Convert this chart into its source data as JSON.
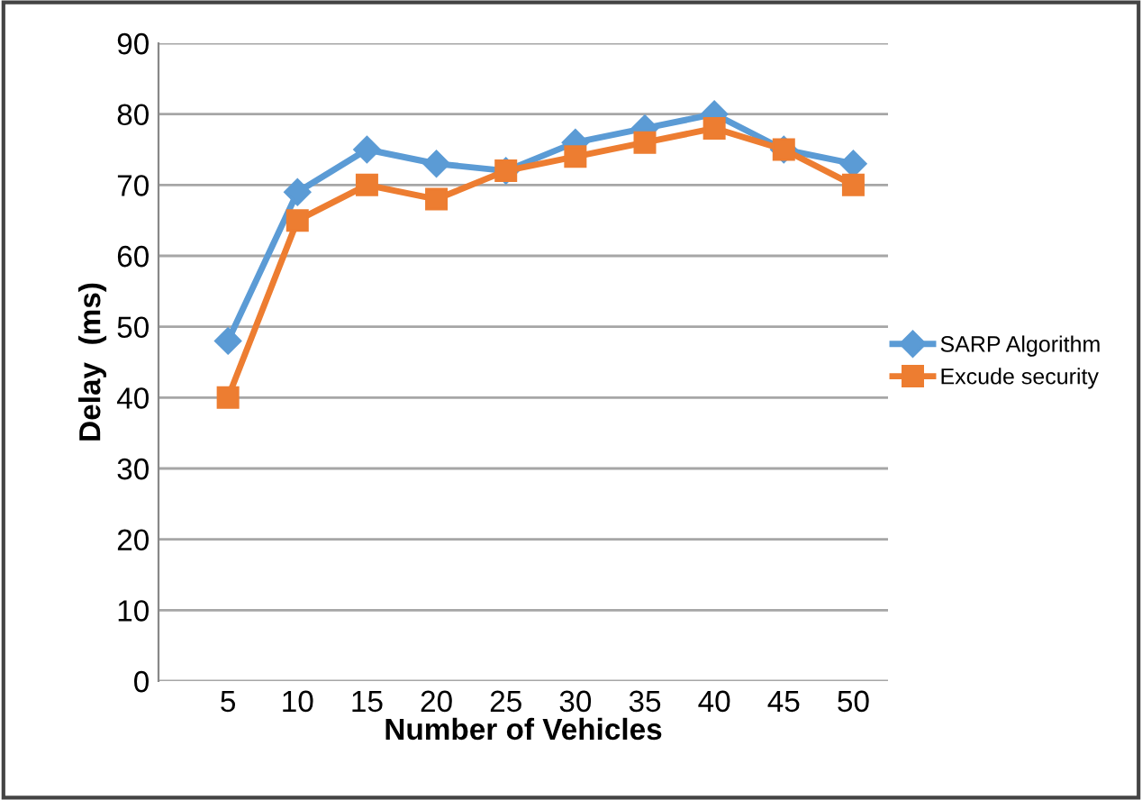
{
  "chart_data": {
    "type": "line",
    "xlabel": "Number of Vehicles",
    "ylabel": "Delay  (ms)",
    "categories": [
      "5",
      "10",
      "15",
      "20",
      "25",
      "30",
      "35",
      "40",
      "45",
      "50"
    ],
    "series": [
      {
        "name": "SARP Algorithm",
        "color": "#5b9bd5",
        "marker": "diamond",
        "values": [
          48,
          69,
          75,
          73,
          72,
          76,
          78,
          80,
          75,
          73
        ]
      },
      {
        "name": "Excude security",
        "color": "#ed7d31",
        "marker": "square",
        "values": [
          40,
          65,
          70,
          68,
          72,
          74,
          76,
          78,
          75,
          70
        ]
      }
    ],
    "ylim": [
      0,
      90
    ],
    "yticks": [
      0,
      10,
      20,
      30,
      40,
      50,
      60,
      70,
      80,
      90
    ],
    "grid": "y",
    "legend": "right"
  }
}
